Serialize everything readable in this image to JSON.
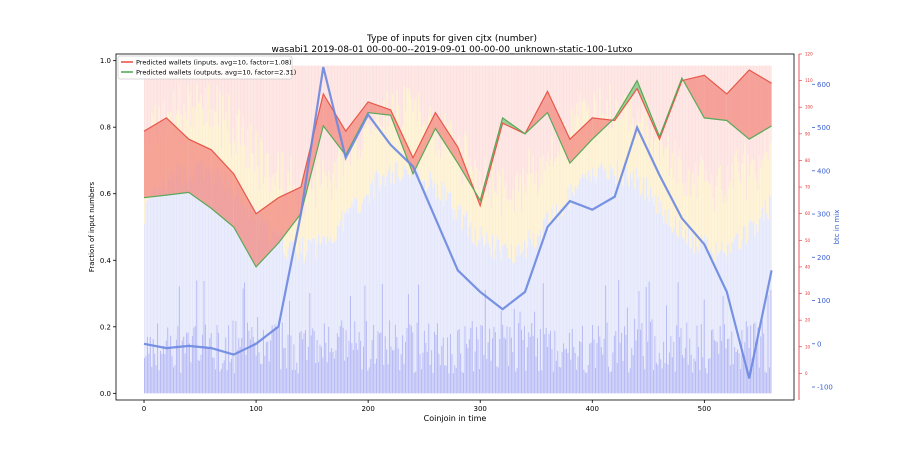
{
  "chart_data": {
    "type": "line",
    "title": "Type of inputs for given cjtx (number)",
    "subtitle": "wasabi1 2019-08-01 00-00-00--2019-09-01 00-00-00_unknown-static-100-1utxo",
    "xlabel": "Coinjoin in time",
    "ylabel": "Fraction of input numbers",
    "y2label": "btc in mix",
    "xlim": [
      -25,
      580
    ],
    "ylim": [
      -0.02,
      1.02
    ],
    "y2lim": [
      -130,
      670
    ],
    "y3lim": [
      -10,
      120
    ],
    "x_ticks": [
      0,
      100,
      200,
      300,
      400,
      500
    ],
    "y_ticks": [
      0.0,
      0.2,
      0.4,
      0.6,
      0.8,
      1.0
    ],
    "y2_ticks": [
      -100,
      0,
      100,
      200,
      300,
      400,
      500,
      600
    ],
    "y3_ticks": [
      0,
      10,
      20,
      30,
      40,
      50,
      60,
      70,
      80,
      90,
      100,
      110,
      120
    ],
    "legend": {
      "position": "top-left",
      "entries": [
        {
          "label": "Predicted wallets (inputs, avg=10, factor=1.08)",
          "color": "#e8574a"
        },
        {
          "label": "Predicted wallets (outputs, avg=10, factor=2.31)",
          "color": "#5aa85a"
        }
      ]
    },
    "x": [
      0,
      20,
      40,
      60,
      80,
      100,
      120,
      140,
      160,
      180,
      200,
      220,
      240,
      260,
      280,
      300,
      320,
      340,
      360,
      380,
      400,
      420,
      440,
      460,
      480,
      500,
      520,
      540,
      560
    ],
    "series": [
      {
        "name": "Predicted wallets (inputs, avg=10, factor=1.08)",
        "axis": "right-red",
        "color": "#e8574a",
        "values": [
          91,
          96,
          88,
          84,
          75,
          60,
          66,
          70,
          105,
          91,
          102,
          99,
          81,
          98,
          85,
          63,
          94,
          90,
          106,
          88,
          96,
          95,
          107,
          88,
          110,
          112,
          105,
          114,
          109
        ]
      },
      {
        "name": "Predicted wallets (outputs, avg=10, factor=2.31)",
        "axis": "right-red",
        "color": "#5aa85a",
        "values": [
          66,
          67,
          68,
          62,
          55,
          40,
          49,
          60,
          93,
          82,
          98,
          97,
          75,
          92,
          79,
          65,
          96,
          90,
          98,
          79,
          88,
          96,
          110,
          89,
          111,
          96,
          95,
          88,
          93
        ]
      },
      {
        "name": "btc in mix",
        "axis": "right-blue",
        "color": "#6a87e0",
        "values": [
          0,
          -10,
          -5,
          -10,
          -25,
          0,
          40,
          300,
          640,
          430,
          530,
          460,
          410,
          290,
          170,
          120,
          80,
          120,
          270,
          330,
          310,
          340,
          500,
          390,
          290,
          230,
          120,
          -80,
          170
        ]
      }
    ]
  }
}
